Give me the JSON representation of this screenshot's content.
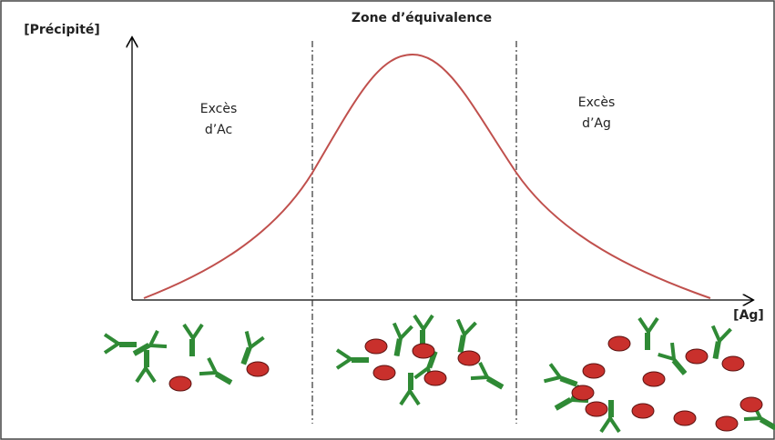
{
  "y_axis_label": "[Précipité]",
  "title": "Zone d’équivalence",
  "x_axis_label": "[Ag]",
  "zones": [
    {
      "label_lines": [
        "Excès",
        "d’Ac"
      ]
    },
    {
      "label_lines": [
        "Excès",
        "d’Ag"
      ]
    }
  ]
}
